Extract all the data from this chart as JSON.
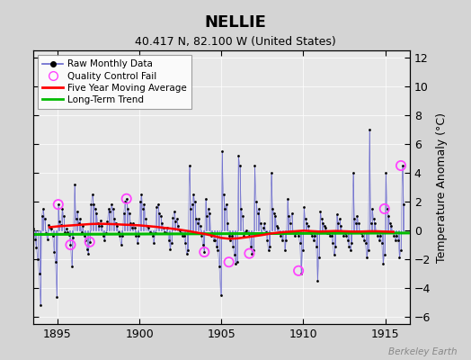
{
  "title": "NELLIE",
  "subtitle": "40.417 N, 82.100 W (United States)",
  "ylabel": "Temperature Anomaly (°C)",
  "watermark": "Berkeley Earth",
  "xlim": [
    1893.5,
    1916.5
  ],
  "ylim": [
    -6.5,
    12.5
  ],
  "yticks": [
    -6,
    -4,
    -2,
    0,
    2,
    4,
    6,
    8,
    10,
    12
  ],
  "xticks": [
    1895,
    1900,
    1905,
    1910,
    1915
  ],
  "fig_bg_color": "#d4d4d4",
  "plot_bg_color": "#e8e8e8",
  "raw_color": "#6666cc",
  "raw_dot_color": "#000000",
  "qc_color": "#ff44ff",
  "moving_avg_color": "#ff0000",
  "trend_color": "#00bb00",
  "grid_color": "#c8c8c8",
  "monthly_data": [
    [
      1893.0417,
      0.5
    ],
    [
      1893.125,
      -0.3
    ],
    [
      1893.2083,
      0.6
    ],
    [
      1893.2917,
      0.2
    ],
    [
      1893.375,
      -0.8
    ],
    [
      1893.4583,
      -0.4
    ],
    [
      1893.5417,
      0.1
    ],
    [
      1893.625,
      -0.6
    ],
    [
      1893.7083,
      -1.2
    ],
    [
      1893.7917,
      -2.0
    ],
    [
      1893.875,
      -3.0
    ],
    [
      1893.9583,
      -5.2
    ],
    [
      1894.0417,
      1.0
    ],
    [
      1894.125,
      1.5
    ],
    [
      1894.2083,
      0.8
    ],
    [
      1894.2917,
      -0.2
    ],
    [
      1894.375,
      -0.6
    ],
    [
      1894.4583,
      0.4
    ],
    [
      1894.5417,
      0.2
    ],
    [
      1894.625,
      0.1
    ],
    [
      1894.7083,
      -0.4
    ],
    [
      1894.7917,
      -1.5
    ],
    [
      1894.875,
      -2.2
    ],
    [
      1894.9583,
      -4.6
    ],
    [
      1895.0417,
      1.8
    ],
    [
      1895.125,
      0.6
    ],
    [
      1895.2083,
      0.4
    ],
    [
      1895.2917,
      1.5
    ],
    [
      1895.375,
      1.0
    ],
    [
      1895.4583,
      -0.1
    ],
    [
      1895.5417,
      0.1
    ],
    [
      1895.625,
      -0.1
    ],
    [
      1895.7083,
      -0.3
    ],
    [
      1895.7917,
      -1.0
    ],
    [
      1895.875,
      -2.5
    ],
    [
      1895.9583,
      -0.5
    ],
    [
      1896.0417,
      3.2
    ],
    [
      1896.125,
      0.8
    ],
    [
      1896.2083,
      1.3
    ],
    [
      1896.2917,
      0.5
    ],
    [
      1896.375,
      0.8
    ],
    [
      1896.4583,
      -0.1
    ],
    [
      1896.5417,
      0.3
    ],
    [
      1896.625,
      -0.4
    ],
    [
      1896.7083,
      -0.7
    ],
    [
      1896.7917,
      -1.3
    ],
    [
      1896.875,
      -1.6
    ],
    [
      1896.9583,
      -0.8
    ],
    [
      1897.0417,
      1.8
    ],
    [
      1897.125,
      2.5
    ],
    [
      1897.2083,
      1.8
    ],
    [
      1897.2917,
      1.5
    ],
    [
      1897.375,
      1.2
    ],
    [
      1897.4583,
      0.5
    ],
    [
      1897.5417,
      0.3
    ],
    [
      1897.625,
      0.7
    ],
    [
      1897.7083,
      0.3
    ],
    [
      1897.7917,
      -0.4
    ],
    [
      1897.875,
      -0.7
    ],
    [
      1897.9583,
      -0.2
    ],
    [
      1898.0417,
      0.6
    ],
    [
      1898.125,
      1.5
    ],
    [
      1898.2083,
      1.3
    ],
    [
      1898.2917,
      1.8
    ],
    [
      1898.375,
      1.5
    ],
    [
      1898.4583,
      0.8
    ],
    [
      1898.5417,
      0.5
    ],
    [
      1898.625,
      0.3
    ],
    [
      1898.7083,
      -0.1
    ],
    [
      1898.7917,
      -0.4
    ],
    [
      1898.875,
      -1.0
    ],
    [
      1898.9583,
      -0.4
    ],
    [
      1899.0417,
      1.2
    ],
    [
      1899.125,
      2.0
    ],
    [
      1899.2083,
      2.2
    ],
    [
      1899.2917,
      1.5
    ],
    [
      1899.375,
      1.2
    ],
    [
      1899.4583,
      0.5
    ],
    [
      1899.5417,
      0.2
    ],
    [
      1899.625,
      0.5
    ],
    [
      1899.7083,
      0.2
    ],
    [
      1899.7917,
      -0.4
    ],
    [
      1899.875,
      -0.9
    ],
    [
      1899.9583,
      -0.4
    ],
    [
      1900.0417,
      2.0
    ],
    [
      1900.125,
      2.5
    ],
    [
      1900.2083,
      1.5
    ],
    [
      1900.2917,
      1.8
    ],
    [
      1900.375,
      0.8
    ],
    [
      1900.4583,
      0.3
    ],
    [
      1900.5417,
      0.2
    ],
    [
      1900.625,
      -0.1
    ],
    [
      1900.7083,
      -0.2
    ],
    [
      1900.7917,
      -0.4
    ],
    [
      1900.875,
      -0.9
    ],
    [
      1900.9583,
      -0.2
    ],
    [
      1901.0417,
      1.6
    ],
    [
      1901.125,
      1.8
    ],
    [
      1901.2083,
      1.2
    ],
    [
      1901.2917,
      1.0
    ],
    [
      1901.375,
      0.5
    ],
    [
      1901.4583,
      0.2
    ],
    [
      1901.5417,
      -0.1
    ],
    [
      1901.625,
      -0.2
    ],
    [
      1901.7083,
      0.2
    ],
    [
      1901.7917,
      -0.7
    ],
    [
      1901.875,
      -1.3
    ],
    [
      1901.9583,
      -0.9
    ],
    [
      1902.0417,
      0.9
    ],
    [
      1902.125,
      1.3
    ],
    [
      1902.2083,
      0.6
    ],
    [
      1902.2917,
      0.8
    ],
    [
      1902.375,
      0.3
    ],
    [
      1902.4583,
      0.0
    ],
    [
      1902.5417,
      -0.2
    ],
    [
      1902.625,
      -0.4
    ],
    [
      1902.7083,
      -0.4
    ],
    [
      1902.7917,
      -0.9
    ],
    [
      1902.875,
      -1.6
    ],
    [
      1902.9583,
      -1.4
    ],
    [
      1903.0417,
      4.5
    ],
    [
      1903.125,
      1.5
    ],
    [
      1903.2083,
      1.8
    ],
    [
      1903.2917,
      2.5
    ],
    [
      1903.375,
      2.0
    ],
    [
      1903.4583,
      0.8
    ],
    [
      1903.5417,
      0.5
    ],
    [
      1903.625,
      0.8
    ],
    [
      1903.7083,
      0.3
    ],
    [
      1903.7917,
      -0.4
    ],
    [
      1903.875,
      -1.0
    ],
    [
      1903.9583,
      -1.5
    ],
    [
      1904.0417,
      2.2
    ],
    [
      1904.125,
      1.0
    ],
    [
      1904.2083,
      1.5
    ],
    [
      1904.2917,
      1.2
    ],
    [
      1904.375,
      -0.4
    ],
    [
      1904.4583,
      -0.2
    ],
    [
      1904.5417,
      -0.7
    ],
    [
      1904.625,
      -0.7
    ],
    [
      1904.7083,
      -1.1
    ],
    [
      1904.7917,
      -1.4
    ],
    [
      1904.875,
      -2.5
    ],
    [
      1904.9583,
      -4.5
    ],
    [
      1905.0417,
      5.5
    ],
    [
      1905.125,
      2.5
    ],
    [
      1905.2083,
      1.5
    ],
    [
      1905.2917,
      1.8
    ],
    [
      1905.375,
      0.5
    ],
    [
      1905.4583,
      -0.4
    ],
    [
      1905.5417,
      -0.7
    ],
    [
      1905.625,
      -0.4
    ],
    [
      1905.7083,
      -1.1
    ],
    [
      1905.7917,
      -1.7
    ],
    [
      1905.875,
      -2.3
    ],
    [
      1905.9583,
      -2.2
    ],
    [
      1906.0417,
      5.2
    ],
    [
      1906.125,
      4.5
    ],
    [
      1906.2083,
      1.5
    ],
    [
      1906.2917,
      1.0
    ],
    [
      1906.375,
      -0.4
    ],
    [
      1906.4583,
      -0.1
    ],
    [
      1906.5417,
      0.0
    ],
    [
      1906.625,
      -0.2
    ],
    [
      1906.7083,
      -0.4
    ],
    [
      1906.7917,
      -1.1
    ],
    [
      1906.875,
      -1.6
    ],
    [
      1906.9583,
      -1.4
    ],
    [
      1907.0417,
      4.5
    ],
    [
      1907.125,
      2.0
    ],
    [
      1907.2083,
      1.2
    ],
    [
      1907.2917,
      1.5
    ],
    [
      1907.375,
      0.5
    ],
    [
      1907.4583,
      -0.2
    ],
    [
      1907.5417,
      0.2
    ],
    [
      1907.625,
      0.5
    ],
    [
      1907.7083,
      -0.1
    ],
    [
      1907.7917,
      -0.7
    ],
    [
      1907.875,
      -1.4
    ],
    [
      1907.9583,
      -1.1
    ],
    [
      1908.0417,
      4.0
    ],
    [
      1908.125,
      1.5
    ],
    [
      1908.2083,
      1.2
    ],
    [
      1908.2917,
      1.0
    ],
    [
      1908.375,
      0.3
    ],
    [
      1908.4583,
      0.2
    ],
    [
      1908.5417,
      -0.1
    ],
    [
      1908.625,
      -0.4
    ],
    [
      1908.7083,
      -0.7
    ],
    [
      1908.7917,
      -0.2
    ],
    [
      1908.875,
      -1.4
    ],
    [
      1908.9583,
      -0.7
    ],
    [
      1909.0417,
      2.2
    ],
    [
      1909.125,
      1.0
    ],
    [
      1909.2083,
      0.5
    ],
    [
      1909.2917,
      1.2
    ],
    [
      1909.375,
      -0.1
    ],
    [
      1909.4583,
      -0.4
    ],
    [
      1909.5417,
      -0.2
    ],
    [
      1909.625,
      -0.1
    ],
    [
      1909.7083,
      -0.4
    ],
    [
      1909.7917,
      -0.9
    ],
    [
      1909.875,
      -3.0
    ],
    [
      1909.9583,
      -1.4
    ],
    [
      1910.0417,
      1.6
    ],
    [
      1910.125,
      0.8
    ],
    [
      1910.2083,
      0.5
    ],
    [
      1910.2917,
      0.3
    ],
    [
      1910.375,
      -0.1
    ],
    [
      1910.4583,
      -0.2
    ],
    [
      1910.5417,
      -0.4
    ],
    [
      1910.625,
      -0.7
    ],
    [
      1910.7083,
      -0.4
    ],
    [
      1910.7917,
      -1.1
    ],
    [
      1910.875,
      -3.5
    ],
    [
      1910.9583,
      -1.9
    ],
    [
      1911.0417,
      1.3
    ],
    [
      1911.125,
      0.8
    ],
    [
      1911.2083,
      0.5
    ],
    [
      1911.2917,
      0.3
    ],
    [
      1911.375,
      0.2
    ],
    [
      1911.4583,
      -0.2
    ],
    [
      1911.5417,
      -0.2
    ],
    [
      1911.625,
      -0.4
    ],
    [
      1911.7083,
      -0.4
    ],
    [
      1911.7917,
      -0.9
    ],
    [
      1911.875,
      -1.7
    ],
    [
      1911.9583,
      -1.1
    ],
    [
      1912.0417,
      1.1
    ],
    [
      1912.125,
      0.5
    ],
    [
      1912.2083,
      0.8
    ],
    [
      1912.2917,
      0.3
    ],
    [
      1912.375,
      -0.1
    ],
    [
      1912.4583,
      -0.4
    ],
    [
      1912.5417,
      -0.2
    ],
    [
      1912.625,
      -0.4
    ],
    [
      1912.7083,
      -0.7
    ],
    [
      1912.7917,
      -1.1
    ],
    [
      1912.875,
      -1.4
    ],
    [
      1912.9583,
      -0.9
    ],
    [
      1913.0417,
      4.0
    ],
    [
      1913.125,
      0.8
    ],
    [
      1913.2083,
      0.5
    ],
    [
      1913.2917,
      1.0
    ],
    [
      1913.375,
      0.5
    ],
    [
      1913.4583,
      -0.1
    ],
    [
      1913.5417,
      -0.2
    ],
    [
      1913.625,
      -0.4
    ],
    [
      1913.7083,
      -0.7
    ],
    [
      1913.7917,
      -0.9
    ],
    [
      1913.875,
      -1.9
    ],
    [
      1913.9583,
      -1.4
    ],
    [
      1914.0417,
      7.0
    ],
    [
      1914.125,
      0.5
    ],
    [
      1914.2083,
      1.5
    ],
    [
      1914.2917,
      0.8
    ],
    [
      1914.375,
      0.5
    ],
    [
      1914.4583,
      -0.1
    ],
    [
      1914.5417,
      -0.4
    ],
    [
      1914.625,
      -0.7
    ],
    [
      1914.7083,
      -0.4
    ],
    [
      1914.7917,
      -0.9
    ],
    [
      1914.875,
      -2.3
    ],
    [
      1914.9583,
      -1.7
    ],
    [
      1915.0417,
      4.0
    ],
    [
      1915.125,
      1.5
    ],
    [
      1915.2083,
      1.0
    ],
    [
      1915.2917,
      0.5
    ],
    [
      1915.375,
      0.3
    ],
    [
      1915.4583,
      -0.1
    ],
    [
      1915.5417,
      -0.4
    ],
    [
      1915.625,
      -0.7
    ],
    [
      1915.7083,
      -0.4
    ],
    [
      1915.7917,
      -0.7
    ],
    [
      1915.875,
      -1.9
    ],
    [
      1915.9583,
      -1.4
    ],
    [
      1916.0417,
      4.5
    ],
    [
      1916.125,
      1.8
    ]
  ],
  "qc_fail_points": [
    [
      1895.0417,
      1.8
    ],
    [
      1895.7917,
      -1.0
    ],
    [
      1896.9583,
      -0.8
    ],
    [
      1899.2083,
      2.2
    ],
    [
      1903.9583,
      -1.5
    ],
    [
      1905.4583,
      -2.2
    ],
    [
      1906.7083,
      -1.6
    ],
    [
      1909.7083,
      -2.8
    ],
    [
      1914.9583,
      1.5
    ],
    [
      1915.9583,
      4.5
    ]
  ],
  "moving_avg": [
    [
      1894.5,
      0.22
    ],
    [
      1895.0,
      0.28
    ],
    [
      1895.5,
      0.32
    ],
    [
      1896.0,
      0.36
    ],
    [
      1896.5,
      0.4
    ],
    [
      1897.0,
      0.44
    ],
    [
      1897.5,
      0.46
    ],
    [
      1898.0,
      0.45
    ],
    [
      1898.5,
      0.43
    ],
    [
      1899.0,
      0.4
    ],
    [
      1899.5,
      0.38
    ],
    [
      1900.0,
      0.35
    ],
    [
      1900.5,
      0.3
    ],
    [
      1901.0,
      0.25
    ],
    [
      1901.5,
      0.18
    ],
    [
      1902.0,
      0.12
    ],
    [
      1902.5,
      0.04
    ],
    [
      1903.0,
      -0.05
    ],
    [
      1903.5,
      -0.15
    ],
    [
      1904.0,
      -0.25
    ],
    [
      1904.5,
      -0.38
    ],
    [
      1905.0,
      -0.52
    ],
    [
      1905.5,
      -0.58
    ],
    [
      1906.0,
      -0.55
    ],
    [
      1906.5,
      -0.48
    ],
    [
      1907.0,
      -0.4
    ],
    [
      1907.5,
      -0.32
    ],
    [
      1908.0,
      -0.22
    ],
    [
      1908.5,
      -0.15
    ],
    [
      1909.0,
      -0.1
    ],
    [
      1909.5,
      -0.06
    ],
    [
      1910.0,
      -0.02
    ],
    [
      1910.5,
      -0.05
    ],
    [
      1911.0,
      -0.08
    ],
    [
      1911.5,
      -0.06
    ],
    [
      1912.0,
      -0.04
    ],
    [
      1912.5,
      -0.06
    ],
    [
      1913.0,
      -0.08
    ],
    [
      1913.5,
      -0.08
    ],
    [
      1914.0,
      -0.06
    ],
    [
      1914.5,
      -0.06
    ],
    [
      1915.0,
      -0.08
    ],
    [
      1915.5,
      -0.1
    ]
  ],
  "trend_x": [
    1893.5,
    1916.5
  ],
  "trend_y": [
    -0.28,
    -0.18
  ]
}
